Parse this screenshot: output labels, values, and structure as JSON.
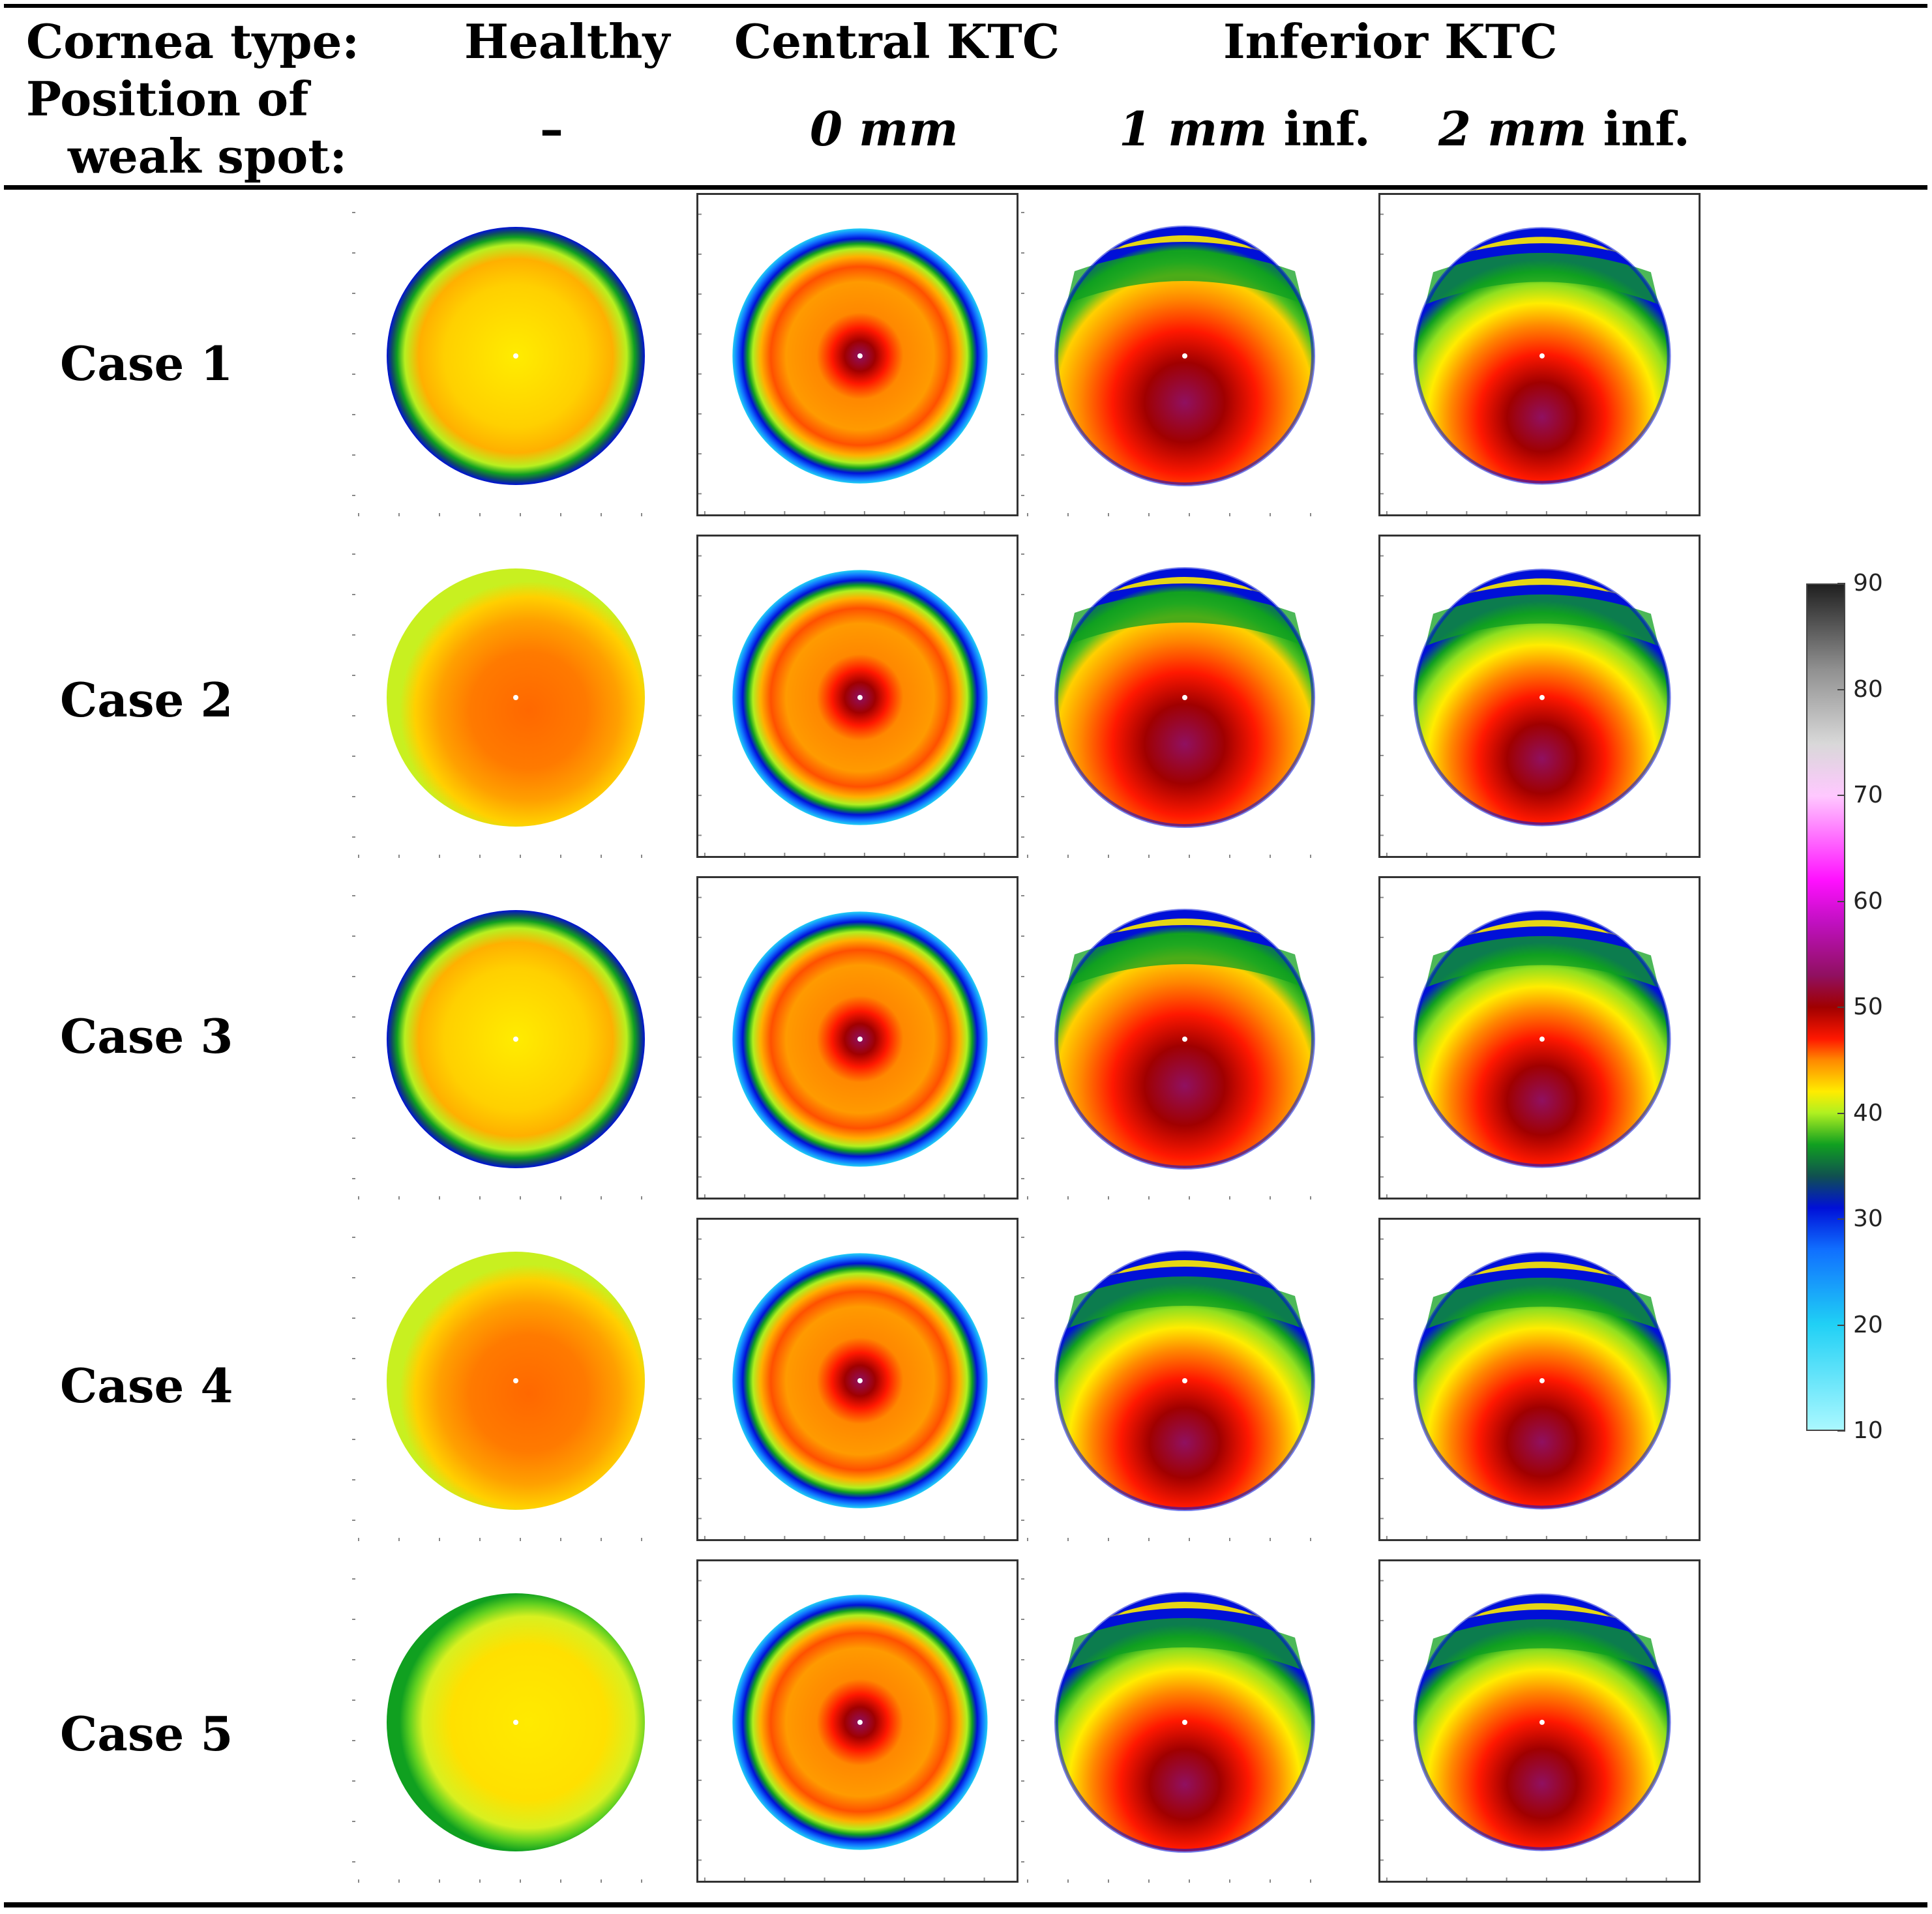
{
  "header": {
    "cornea_type_label": "Cornea type:",
    "position_label_line1": "Position of",
    "position_label_line2": "weak spot:",
    "columns": [
      {
        "type": "Healthy",
        "position": "–"
      },
      {
        "type": "Central KTC",
        "position_italic": "0 mm",
        "position_suffix": ""
      },
      {
        "type": "Inferior KTC",
        "position_italic": "1 mm",
        "position_suffix": " inf."
      },
      {
        "position_italic": "2 mm",
        "position_suffix": " inf."
      }
    ]
  },
  "rows": [
    {
      "label": "Case 1",
      "maps": [
        "healthy",
        "central",
        "inf1",
        "inf2"
      ]
    },
    {
      "label": "Case 2",
      "maps": [
        "healthy-steep",
        "central",
        "inf1",
        "inf2"
      ]
    },
    {
      "label": "Case 3",
      "maps": [
        "healthy",
        "central",
        "inf1",
        "inf2"
      ]
    },
    {
      "label": "Case 4",
      "maps": [
        "healthy-steep",
        "central",
        "inf2",
        "inf2"
      ]
    },
    {
      "label": "Case 5",
      "maps": [
        "healthy-flat",
        "central",
        "inf2",
        "inf2"
      ]
    }
  ],
  "colorbar": {
    "ticks": [
      "90",
      "80",
      "70",
      "60",
      "50",
      "40",
      "30",
      "20",
      "10"
    ],
    "min": 10,
    "max": 90,
    "stops": [
      {
        "value": 10,
        "color": "#aaf8ff"
      },
      {
        "value": 20,
        "color": "#20d0f5"
      },
      {
        "value": 27,
        "color": "#1070ff"
      },
      {
        "value": 31,
        "color": "#0010d8"
      },
      {
        "value": 34,
        "color": "#105050"
      },
      {
        "value": 37,
        "color": "#10a020"
      },
      {
        "value": 40,
        "color": "#b0f020"
      },
      {
        "value": 42,
        "color": "#ffec00"
      },
      {
        "value": 45,
        "color": "#ff8800"
      },
      {
        "value": 47,
        "color": "#ff1800"
      },
      {
        "value": 50,
        "color": "#a00000"
      },
      {
        "value": 53,
        "color": "#901060"
      },
      {
        "value": 58,
        "color": "#c010c0"
      },
      {
        "value": 62,
        "color": "#ff10ff"
      },
      {
        "value": 70,
        "color": "#ffc8ff"
      },
      {
        "value": 75,
        "color": "#d8d8d8"
      },
      {
        "value": 82,
        "color": "#909090"
      },
      {
        "value": 90,
        "color": "#202020"
      }
    ]
  }
}
